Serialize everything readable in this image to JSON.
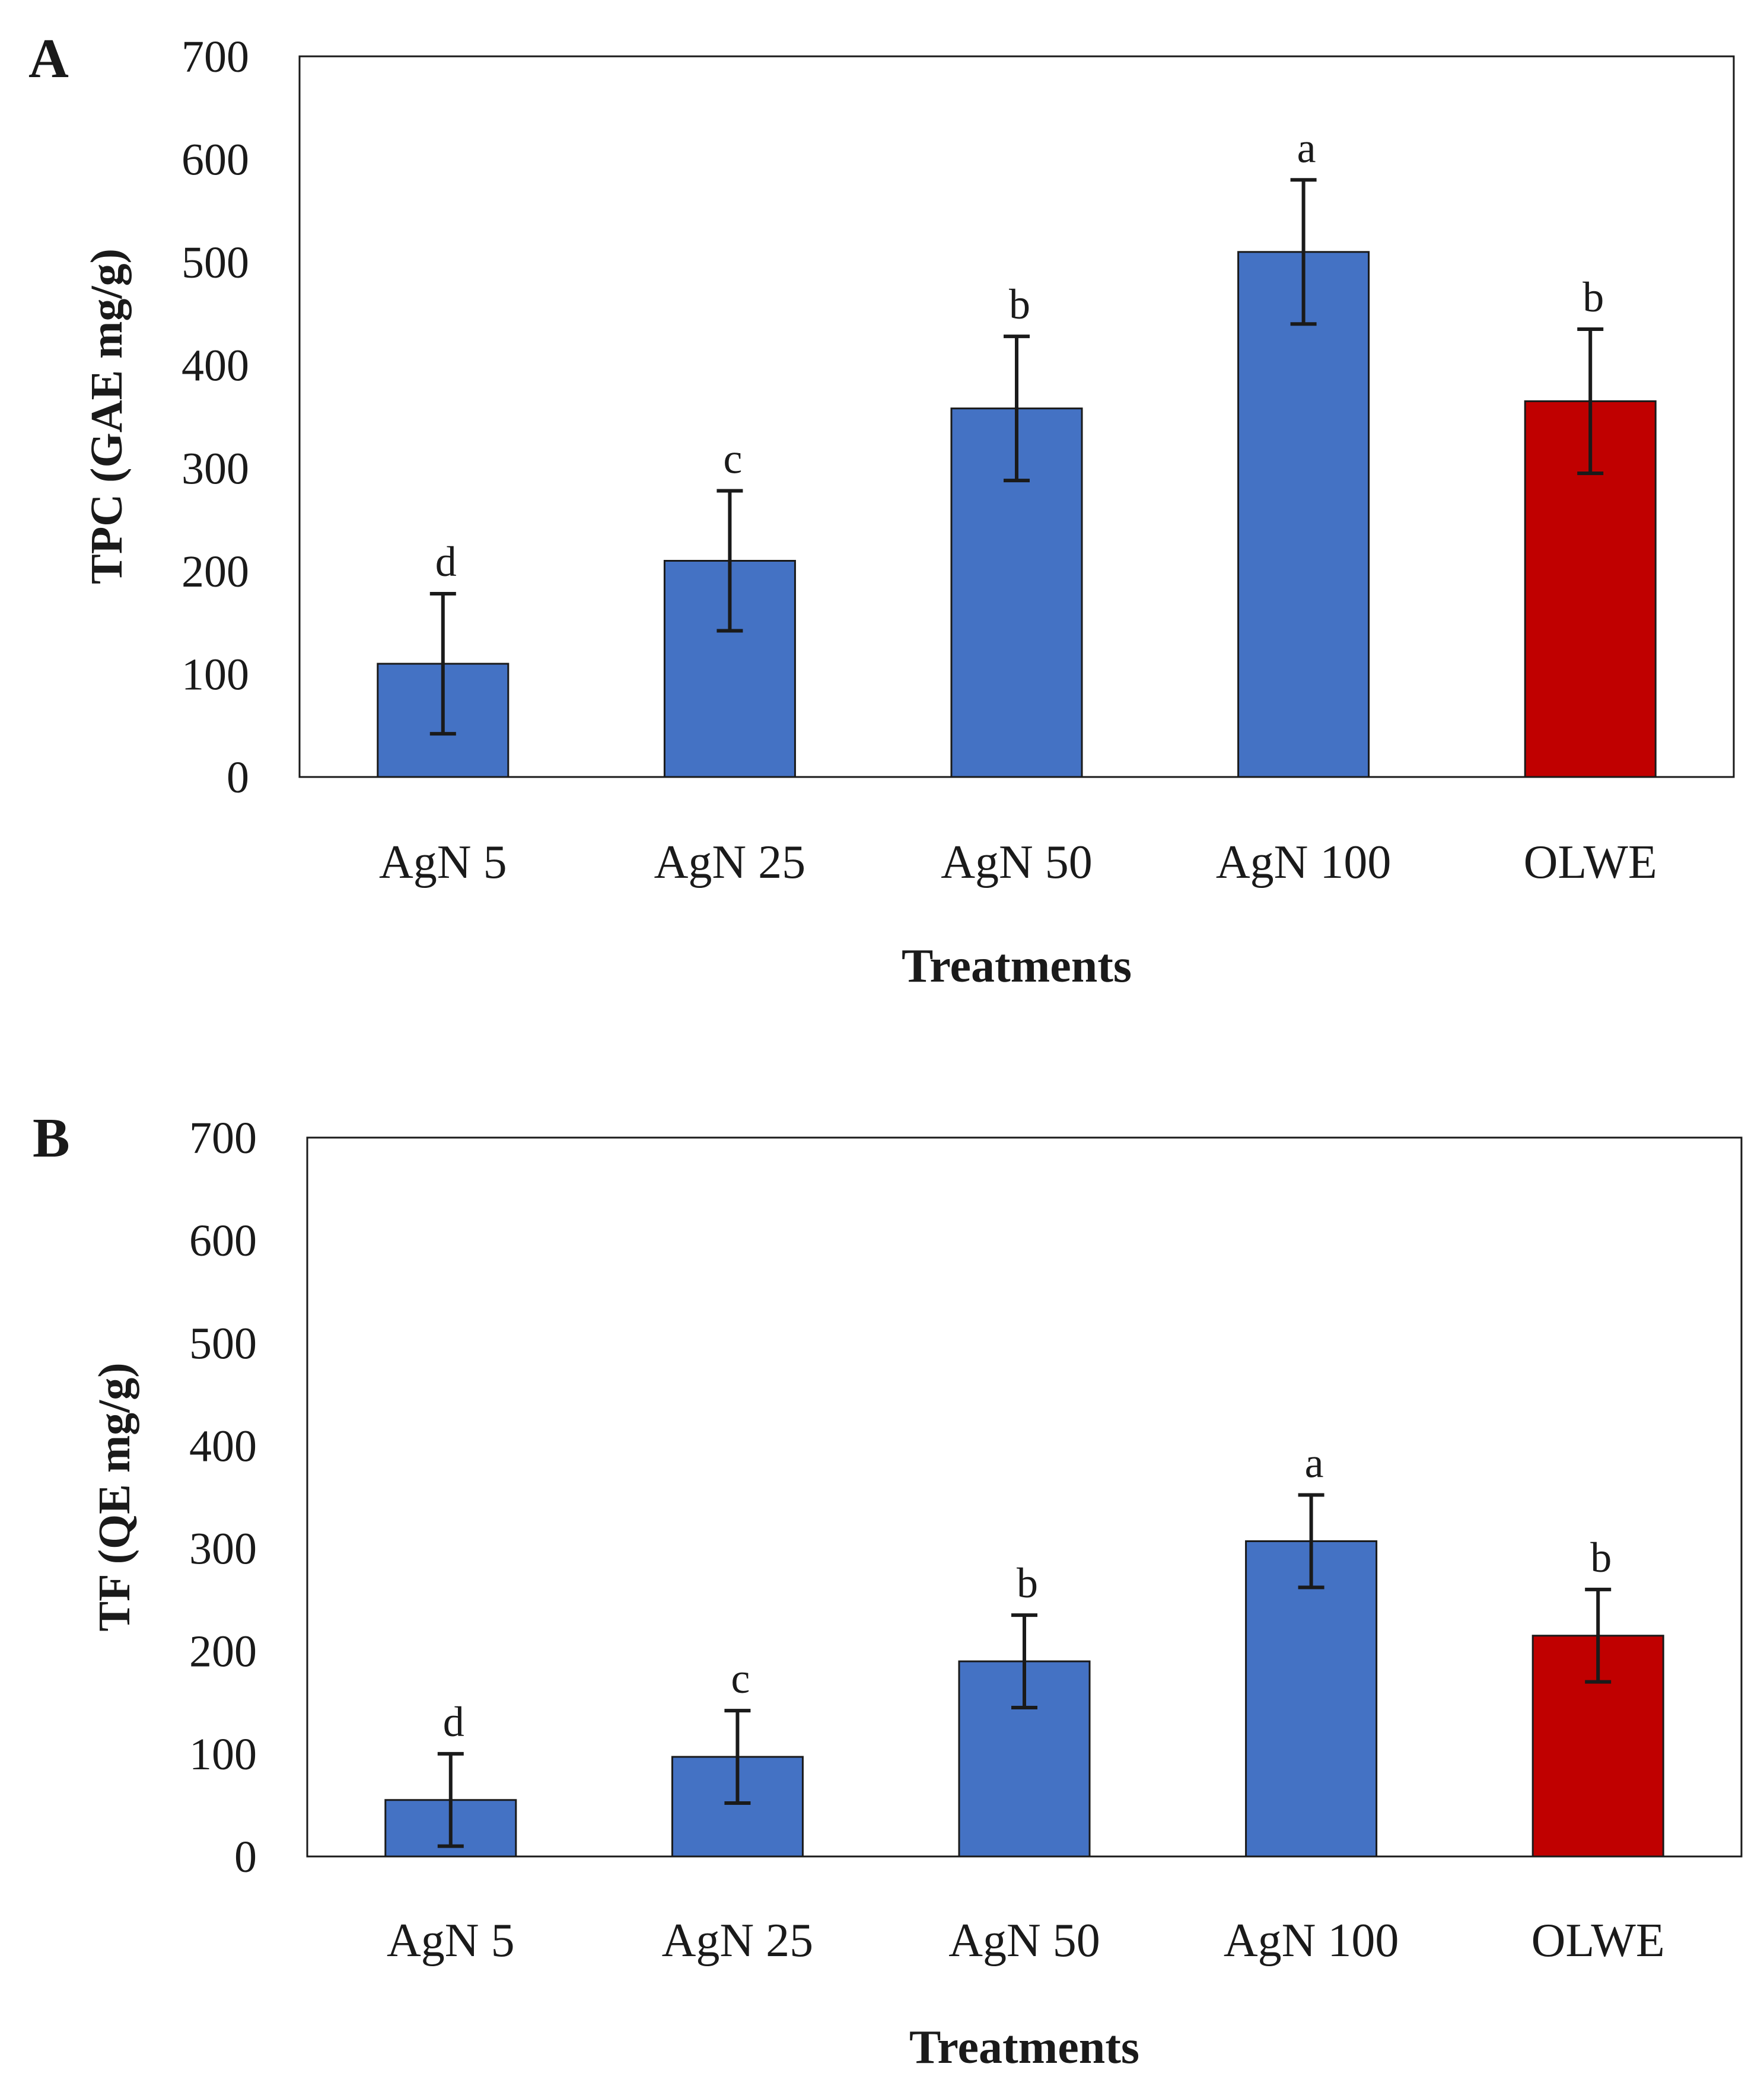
{
  "colors": {
    "bar_default": "#4472C4",
    "bar_highlight": "#C00000",
    "axis": "#1a1a1a"
  },
  "chart_data": [
    {
      "type": "bar",
      "panel": "A",
      "xlabel": "Treatments",
      "ylabel": "TPC (GAE mg/g)",
      "ylim": [
        0,
        700
      ],
      "yticks": [
        "0",
        "100",
        "200",
        "300",
        "400",
        "500",
        "600",
        "700"
      ],
      "grid": false,
      "categories": [
        "AgN 5",
        "AgN 25",
        "AgN 50",
        "AgN 100",
        "OLWE"
      ],
      "values": [
        110,
        210,
        358,
        510,
        365
      ],
      "errors": [
        68,
        68,
        70,
        70,
        70
      ],
      "significance": [
        "d",
        "c",
        "b",
        "a",
        "b"
      ],
      "bar_colors": [
        "#4472C4",
        "#4472C4",
        "#4472C4",
        "#4472C4",
        "#C00000"
      ]
    },
    {
      "type": "bar",
      "panel": "B",
      "xlabel": "Treatments",
      "ylabel": "TF (QE mg/g)",
      "ylim": [
        0,
        700
      ],
      "yticks": [
        "0",
        "100",
        "200",
        "300",
        "400",
        "500",
        "600",
        "700"
      ],
      "grid": false,
      "categories": [
        "AgN 5",
        "AgN 25",
        "AgN 50",
        "AgN 100",
        "OLWE"
      ],
      "values": [
        55,
        97,
        190,
        307,
        215
      ],
      "errors": [
        45,
        45,
        45,
        45,
        45
      ],
      "significance": [
        "d",
        "c",
        "b",
        "a",
        "b"
      ],
      "bar_colors": [
        "#4472C4",
        "#4472C4",
        "#4472C4",
        "#4472C4",
        "#C00000"
      ]
    }
  ]
}
